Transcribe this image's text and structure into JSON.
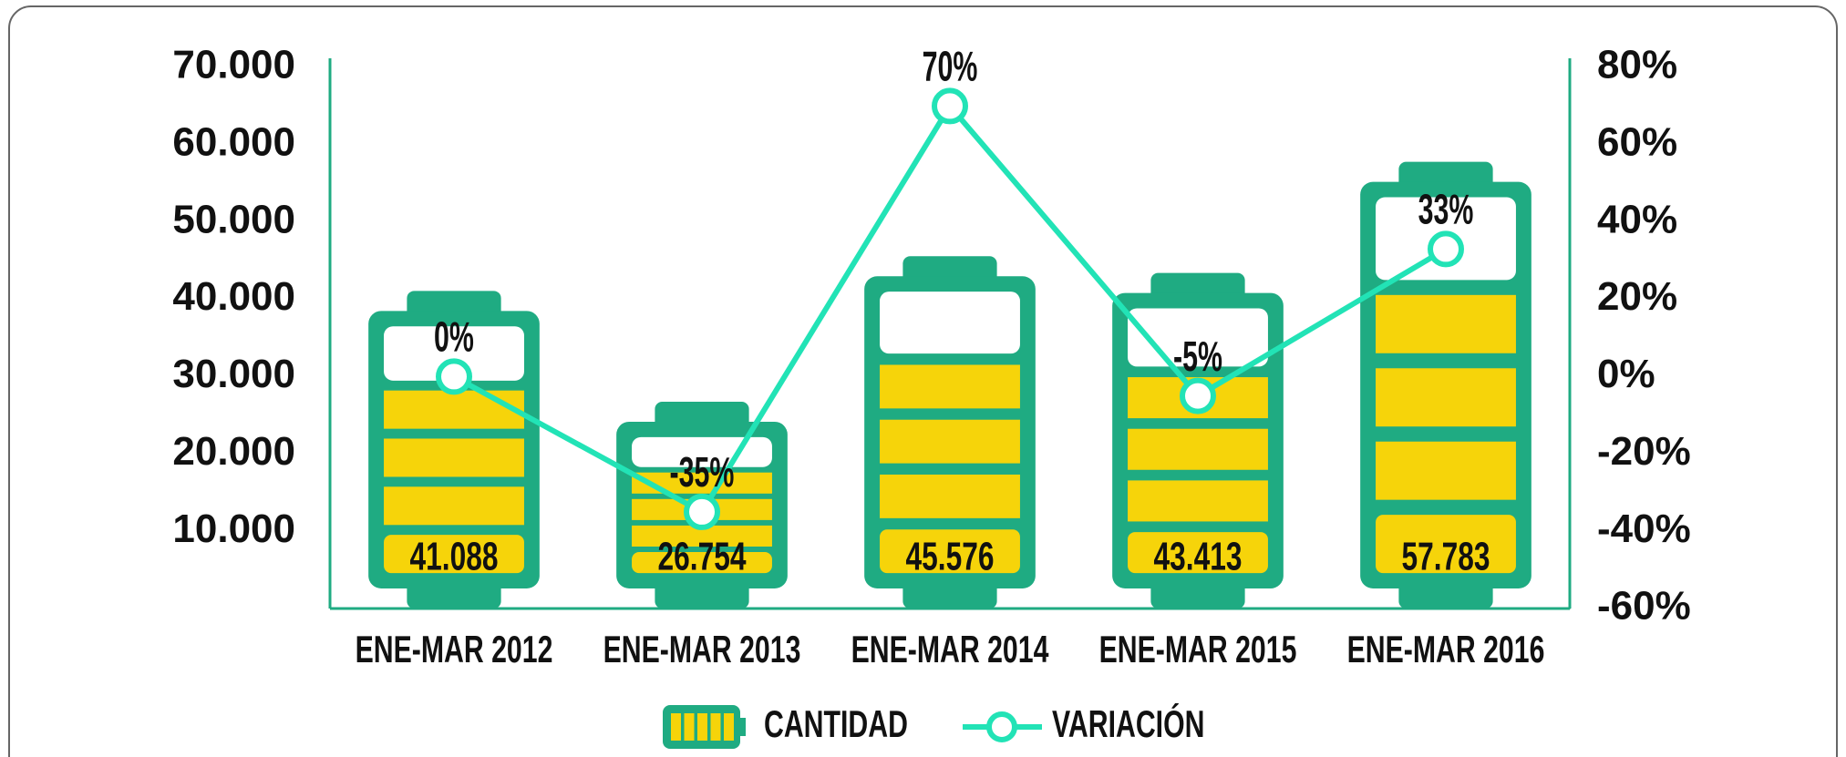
{
  "chart_data": {
    "type": "battery-bar-line",
    "categories": [
      "ENE-MAR 2012",
      "ENE-MAR 2013",
      "ENE-MAR 2014",
      "ENE-MAR 2015",
      "ENE-MAR 2016"
    ],
    "series": [
      {
        "name": "CANTIDAD",
        "color": "#1fab82",
        "fill_color": "#f6d40a",
        "values": [
          41088,
          26754,
          45576,
          43413,
          57783
        ],
        "value_labels": [
          "41.088",
          "26.754",
          "45.576",
          "43.413",
          "57.783"
        ]
      },
      {
        "name": "VARIACIÓN",
        "color": "#22e3b6",
        "axis": "y2",
        "values": [
          0,
          -35,
          70,
          -5,
          33
        ],
        "value_labels": [
          "0%",
          "-35%",
          "70%",
          "-5%",
          "33%"
        ]
      }
    ],
    "ylim": [
      0,
      70000
    ],
    "yticks": [
      {
        "value": 10000,
        "label": "10.000"
      },
      {
        "value": 20000,
        "label": "20.000"
      },
      {
        "value": 30000,
        "label": "30.000"
      },
      {
        "value": 40000,
        "label": "40.000"
      },
      {
        "value": 50000,
        "label": "50.000"
      },
      {
        "value": 60000,
        "label": "60.000"
      },
      {
        "value": 70000,
        "label": "70.000"
      }
    ],
    "y2lim": [
      -60,
      80
    ],
    "y2ticks": [
      {
        "value": -60,
        "label": "-60%"
      },
      {
        "value": -40,
        "label": "-40%"
      },
      {
        "value": -20,
        "label": "-20%"
      },
      {
        "value": 0,
        "label": "0%"
      },
      {
        "value": 20,
        "label": "20%"
      },
      {
        "value": 40,
        "label": "40%"
      },
      {
        "value": 60,
        "label": "60%"
      },
      {
        "value": 80,
        "label": "80%"
      }
    ],
    "legend": "bottom"
  }
}
